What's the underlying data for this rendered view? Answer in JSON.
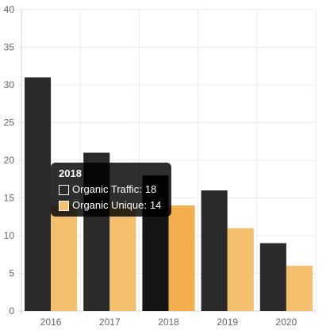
{
  "chart_data": {
    "type": "bar",
    "categories": [
      "2016",
      "2017",
      "2018",
      "2019",
      "2020"
    ],
    "series": [
      {
        "name": "Organic Traffic",
        "values": [
          31,
          21,
          18,
          16,
          9
        ],
        "color": "#2a2a2a",
        "hover_color": "#151515"
      },
      {
        "name": "Organic Unique",
        "values": [
          14,
          14,
          14,
          11,
          6
        ],
        "color": "#f5c06e",
        "hover_color": "#f3ae4e"
      }
    ],
    "ylim": [
      0,
      40
    ],
    "y_ticks": [
      0,
      5,
      10,
      15,
      20,
      25,
      30,
      35,
      40
    ],
    "grid": true,
    "title": "",
    "xlabel": "",
    "ylabel": ""
  },
  "tooltip": {
    "title": "2018",
    "rows": [
      {
        "label": "Organic Traffic:",
        "value": "18",
        "color": "#2a2a2a"
      },
      {
        "label": "Organic Unique:",
        "value": "14",
        "color": "#f5c06e"
      }
    ]
  },
  "colors": {
    "grid": "#ececec",
    "axis": "#d0d0d0",
    "tick_text": "#666666"
  }
}
